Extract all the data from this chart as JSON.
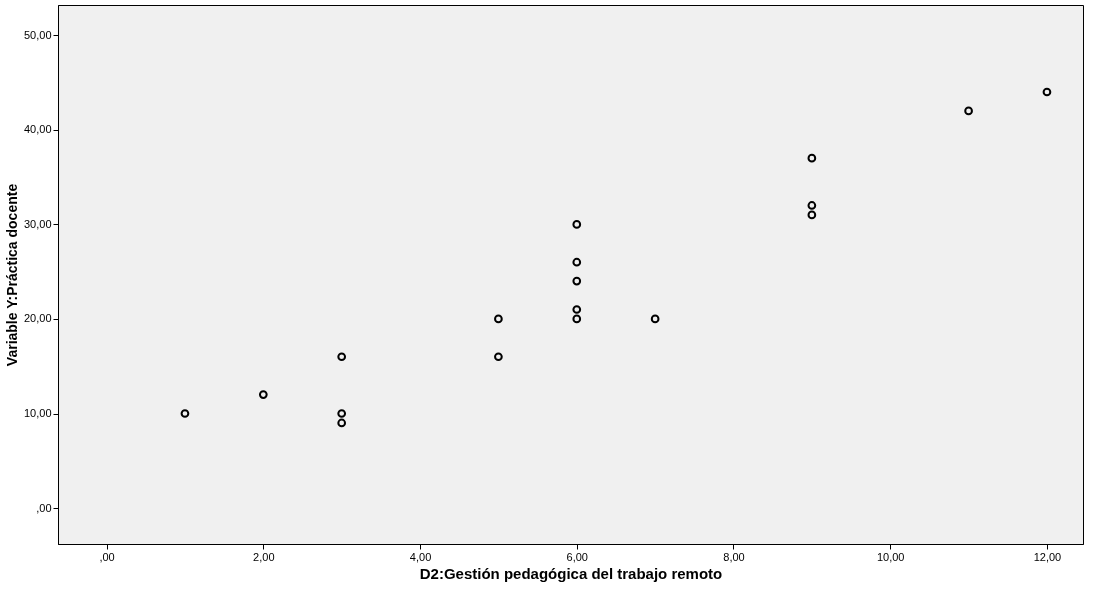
{
  "chart_data": {
    "type": "scatter",
    "xlabel": "D2:Gestión pedagógica del trabajo remoto",
    "ylabel": "Variable Y:Práctica docente",
    "x": [
      1,
      2,
      3,
      3,
      3,
      5,
      5,
      6,
      6,
      6,
      6,
      6,
      7,
      9,
      9,
      9,
      11,
      12
    ],
    "series": [
      {
        "color": "#000000",
        "values": [
          10,
          12,
          16,
          10,
          9,
          20,
          16,
          30,
          26,
          24,
          21,
          20,
          20,
          37,
          32,
          31,
          42,
          44
        ]
      }
    ],
    "marker": "circle",
    "grid": false,
    "xlim": [
      -0.62,
      12.46
    ],
    "ylim": [
      -3.8,
      53.2
    ],
    "xticks": [
      {
        "value": 0,
        "label": ",00"
      },
      {
        "value": 2,
        "label": "2,00"
      },
      {
        "value": 4,
        "label": "4,00"
      },
      {
        "value": 6,
        "label": "6,00"
      },
      {
        "value": 8,
        "label": "8,00"
      },
      {
        "value": 10,
        "label": "10,00"
      },
      {
        "value": 12,
        "label": "12,00"
      }
    ],
    "yticks": [
      {
        "value": 0,
        "label": ",00"
      },
      {
        "value": 10,
        "label": "10,00"
      },
      {
        "value": 20,
        "label": "20,00"
      },
      {
        "value": 30,
        "label": "30,00"
      },
      {
        "value": 40,
        "label": "40,00"
      },
      {
        "value": 50,
        "label": "50,00"
      }
    ]
  }
}
